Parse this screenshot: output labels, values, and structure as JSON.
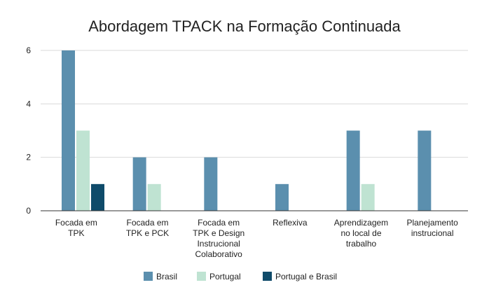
{
  "chart_data": {
    "type": "bar",
    "title": "Abordagem TPACK na Formação Continuada",
    "xlabel": "",
    "ylabel": "",
    "ylim": [
      0,
      6
    ],
    "yticks": [
      "0",
      "2",
      "4",
      "6"
    ],
    "grid": true,
    "legend_position": "bottom",
    "categories": [
      [
        "Focada em",
        "TPK"
      ],
      [
        "Focada em",
        "TPK e PCK"
      ],
      [
        "Focada em",
        "TPK e Design",
        "Instrucional",
        "Colaborativo"
      ],
      [
        "Reflexiva"
      ],
      [
        "Aprendizagem",
        "no local de",
        "trabalho"
      ],
      [
        "Planejamento",
        "instrucional"
      ]
    ],
    "series": [
      {
        "name": "Brasil",
        "color": "#5b8fae",
        "values": [
          6,
          2,
          2,
          1,
          3,
          3
        ]
      },
      {
        "name": "Portugal",
        "color": "#bfe3d2",
        "values": [
          3,
          1,
          0,
          0,
          1,
          0
        ]
      },
      {
        "name": "Portugal e Brasil",
        "color": "#0f4b6a",
        "values": [
          1,
          0,
          0,
          0,
          0,
          0
        ]
      }
    ]
  }
}
